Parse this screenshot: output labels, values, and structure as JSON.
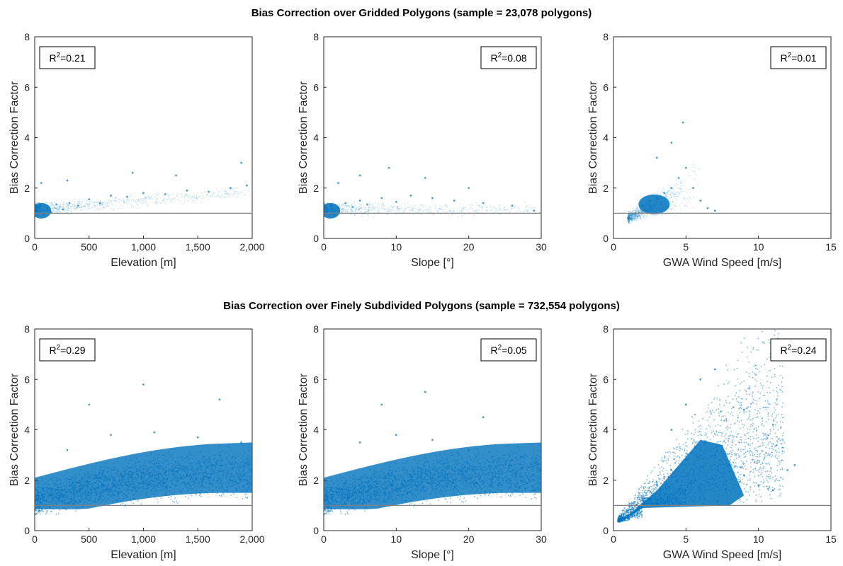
{
  "figure": {
    "row_titles": [
      "Bias Correction over Gridded Polygons (sample = 23,078 polygons)",
      "Bias Correction over Finely Subdivided Polygons (sample = 732,554 polygons)"
    ]
  },
  "colors": {
    "points": "#0072BD",
    "reference_line": "#808080",
    "axes": "#262626"
  },
  "chart_data": [
    {
      "type": "scatter",
      "row": 0,
      "col": 0,
      "xlabel": "Elevation [m]",
      "ylabel": "Bias Correction Factor",
      "xlim": [
        0,
        2000
      ],
      "ylim": [
        0,
        8
      ],
      "xticks": [
        0,
        500,
        1000,
        1500,
        2000
      ],
      "xtick_labels": [
        "0",
        "500",
        "1,000",
        "1,500",
        "2,000"
      ],
      "yticks": [
        0,
        2,
        4,
        6,
        8
      ],
      "ytick_labels": [
        "0",
        "2",
        "4",
        "6",
        "8"
      ],
      "annotation": {
        "r2_value": "0.21",
        "position": "top-left"
      },
      "reference_line_y": 1,
      "density": "sparse",
      "points": [
        [
          20,
          1.1
        ],
        [
          50,
          1.3
        ],
        [
          80,
          0.95
        ],
        [
          120,
          1.2
        ],
        [
          150,
          1.05
        ],
        [
          200,
          1.35
        ],
        [
          260,
          1.15
        ],
        [
          320,
          1.4
        ],
        [
          400,
          1.3
        ],
        [
          500,
          1.55
        ],
        [
          600,
          1.4
        ],
        [
          700,
          1.7
        ],
        [
          850,
          1.65
        ],
        [
          1000,
          1.8
        ],
        [
          1200,
          1.75
        ],
        [
          1400,
          1.9
        ],
        [
          1600,
          1.85
        ],
        [
          1800,
          2.0
        ],
        [
          1950,
          2.1
        ],
        [
          60,
          2.2
        ],
        [
          300,
          2.3
        ],
        [
          900,
          2.6
        ],
        [
          1300,
          2.5
        ],
        [
          1900,
          3.0
        ]
      ]
    },
    {
      "type": "scatter",
      "row": 0,
      "col": 1,
      "xlabel": "Slope [°]",
      "ylabel": "Bias Correction Factor",
      "xlim": [
        0,
        30
      ],
      "ylim": [
        0,
        8
      ],
      "xticks": [
        0,
        10,
        20,
        30
      ],
      "xtick_labels": [
        "0",
        "10",
        "20",
        "30"
      ],
      "yticks": [
        0,
        2,
        4,
        6,
        8
      ],
      "ytick_labels": [
        "0",
        "2",
        "4",
        "6",
        "8"
      ],
      "annotation": {
        "r2_value": "0.08",
        "position": "top-right"
      },
      "reference_line_y": 1,
      "density": "sparse",
      "points": [
        [
          0.5,
          1.1
        ],
        [
          1,
          1.3
        ],
        [
          1.5,
          0.95
        ],
        [
          2,
          1.2
        ],
        [
          3,
          1.4
        ],
        [
          4,
          1.25
        ],
        [
          5,
          1.5
        ],
        [
          6,
          1.35
        ],
        [
          8,
          1.6
        ],
        [
          10,
          1.45
        ],
        [
          12,
          1.7
        ],
        [
          15,
          1.6
        ],
        [
          18,
          1.5
        ],
        [
          22,
          1.4
        ],
        [
          26,
          1.3
        ],
        [
          29,
          1.1
        ],
        [
          2,
          2.2
        ],
        [
          5,
          2.5
        ],
        [
          9,
          2.8
        ],
        [
          14,
          2.4
        ],
        [
          20,
          2.0
        ]
      ]
    },
    {
      "type": "scatter",
      "row": 0,
      "col": 2,
      "xlabel": "GWA Wind Speed [m/s]",
      "ylabel": "Bias Correction Factor",
      "xlim": [
        0,
        15
      ],
      "ylim": [
        0,
        8
      ],
      "xticks": [
        0,
        5,
        10,
        15
      ],
      "xtick_labels": [
        "0",
        "5",
        "10",
        "15"
      ],
      "yticks": [
        0,
        2,
        4,
        6,
        8
      ],
      "ytick_labels": [
        "0",
        "2",
        "4",
        "6",
        "8"
      ],
      "annotation": {
        "r2_value": "0.01",
        "position": "top-right"
      },
      "reference_line_y": 1,
      "density": "sparse",
      "points": [
        [
          1.0,
          0.8
        ],
        [
          1.5,
          1.0
        ],
        [
          2.0,
          1.3
        ],
        [
          2.5,
          1.5
        ],
        [
          3.0,
          1.6
        ],
        [
          3.5,
          1.8
        ],
        [
          4.0,
          2.0
        ],
        [
          4.5,
          2.4
        ],
        [
          5.0,
          2.8
        ],
        [
          5.5,
          2.0
        ],
        [
          6.0,
          1.5
        ],
        [
          6.5,
          1.2
        ],
        [
          7.0,
          1.1
        ],
        [
          3.0,
          3.2
        ],
        [
          4.0,
          3.8
        ],
        [
          4.8,
          4.6
        ]
      ]
    },
    {
      "type": "scatter",
      "row": 1,
      "col": 0,
      "xlabel": "Elevation [m]",
      "ylabel": "Bias Correction Factor",
      "xlim": [
        0,
        2000
      ],
      "ylim": [
        0,
        8
      ],
      "xticks": [
        0,
        500,
        1000,
        1500,
        2000
      ],
      "xtick_labels": [
        "0",
        "500",
        "1,000",
        "1,500",
        "2,000"
      ],
      "yticks": [
        0,
        2,
        4,
        6,
        8
      ],
      "ytick_labels": [
        "0",
        "2",
        "4",
        "6",
        "8"
      ],
      "annotation": {
        "r2_value": "0.29",
        "position": "top-left"
      },
      "reference_line_y": 1,
      "density": "dense",
      "points": [
        [
          50,
          1.2
        ],
        [
          150,
          1.4
        ],
        [
          250,
          1.6
        ],
        [
          400,
          1.9
        ],
        [
          600,
          2.1
        ],
        [
          800,
          2.2
        ],
        [
          1000,
          2.3
        ],
        [
          1200,
          2.3
        ],
        [
          1400,
          2.2
        ],
        [
          1600,
          2.1
        ],
        [
          1800,
          2.0
        ],
        [
          1950,
          2.0
        ],
        [
          300,
          3.2
        ],
        [
          700,
          3.8
        ],
        [
          1100,
          3.9
        ],
        [
          1500,
          3.7
        ],
        [
          1900,
          3.5
        ],
        [
          500,
          5.0
        ],
        [
          1000,
          5.8
        ],
        [
          1700,
          5.2
        ]
      ]
    },
    {
      "type": "scatter",
      "row": 1,
      "col": 1,
      "xlabel": "Slope [°]",
      "ylabel": "Bias Correction Factor",
      "xlim": [
        0,
        30
      ],
      "ylim": [
        0,
        8
      ],
      "xticks": [
        0,
        10,
        20,
        30
      ],
      "xtick_labels": [
        "0",
        "10",
        "20",
        "30"
      ],
      "yticks": [
        0,
        2,
        4,
        6,
        8
      ],
      "ytick_labels": [
        "0",
        "2",
        "4",
        "6",
        "8"
      ],
      "annotation": {
        "r2_value": "0.05",
        "position": "top-right"
      },
      "reference_line_y": 1,
      "density": "dense",
      "points": [
        [
          1,
          1.6
        ],
        [
          3,
          1.9
        ],
        [
          6,
          2.1
        ],
        [
          9,
          2.2
        ],
        [
          12,
          2.2
        ],
        [
          15,
          2.1
        ],
        [
          18,
          2.0
        ],
        [
          21,
          1.9
        ],
        [
          24,
          1.8
        ],
        [
          27,
          1.7
        ],
        [
          29,
          1.6
        ],
        [
          5,
          3.5
        ],
        [
          10,
          3.8
        ],
        [
          15,
          3.6
        ],
        [
          20,
          3.2
        ],
        [
          26,
          2.8
        ],
        [
          8,
          5.0
        ],
        [
          14,
          5.5
        ],
        [
          22,
          4.5
        ]
      ]
    },
    {
      "type": "scatter",
      "row": 1,
      "col": 2,
      "xlabel": "GWA Wind Speed [m/s]",
      "ylabel": "Bias Correction Factor",
      "xlim": [
        0,
        15
      ],
      "ylim": [
        0,
        8
      ],
      "xticks": [
        0,
        5,
        10,
        15
      ],
      "xtick_labels": [
        "0",
        "5",
        "10",
        "15"
      ],
      "yticks": [
        0,
        2,
        4,
        6,
        8
      ],
      "ytick_labels": [
        "0",
        "2",
        "4",
        "6",
        "8"
      ],
      "annotation": {
        "r2_value": "0.24",
        "position": "top-right"
      },
      "reference_line_y": 1,
      "density": "fan",
      "points": [
        [
          0.5,
          0.4
        ],
        [
          1,
          0.8
        ],
        [
          2,
          1.2
        ],
        [
          3,
          1.8
        ],
        [
          4,
          2.4
        ],
        [
          5,
          2.8
        ],
        [
          6,
          3.2
        ],
        [
          7,
          3.0
        ],
        [
          8,
          2.6
        ],
        [
          9,
          2.2
        ],
        [
          10,
          1.8
        ],
        [
          11,
          1.6
        ],
        [
          12,
          2.4
        ],
        [
          4,
          4.0
        ],
        [
          5,
          5.0
        ],
        [
          6,
          6.0
        ],
        [
          7,
          6.4
        ],
        [
          9,
          4.8
        ],
        [
          11,
          4.2
        ],
        [
          12.5,
          2.6
        ]
      ]
    }
  ]
}
